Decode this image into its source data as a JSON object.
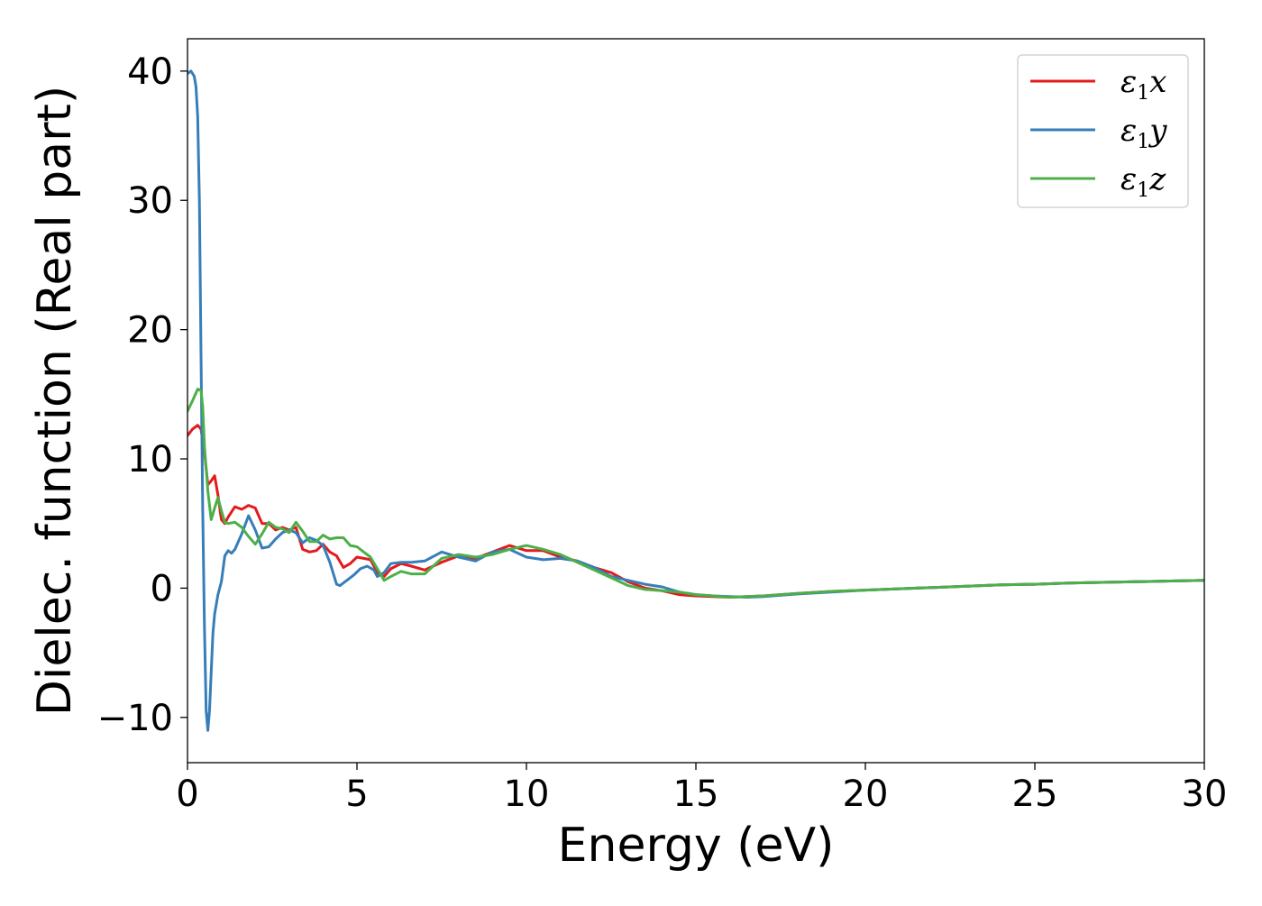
{
  "chart_data": {
    "type": "line",
    "title": "",
    "xlabel": "Energy (eV)",
    "ylabel": "Dielec. function (Real part)",
    "xlim": [
      0,
      30
    ],
    "ylim": [
      -13.5,
      42.5
    ],
    "xticks": [
      0,
      5,
      10,
      15,
      20,
      25,
      30
    ],
    "xtick_labels": [
      "0",
      "5",
      "10",
      "15",
      "20",
      "25",
      "30"
    ],
    "yticks": [
      -10,
      0,
      10,
      20,
      30,
      40
    ],
    "ytick_labels": [
      "−10",
      "0",
      "10",
      "20",
      "30",
      "40"
    ],
    "grid": false,
    "legend_position": "top-right",
    "series": [
      {
        "name": "ε₁x",
        "symbol": "ε",
        "sub": "1",
        "axis": "x",
        "color": "#e41a1c",
        "x": [
          0,
          0.15,
          0.3,
          0.4,
          0.5,
          0.6,
          0.7,
          0.8,
          0.9,
          1.0,
          1.1,
          1.2,
          1.4,
          1.6,
          1.8,
          2.0,
          2.2,
          2.4,
          2.6,
          2.8,
          3.0,
          3.2,
          3.4,
          3.6,
          3.8,
          4.0,
          4.2,
          4.4,
          4.6,
          4.8,
          5.0,
          5.2,
          5.4,
          5.6,
          5.8,
          6.0,
          6.3,
          6.6,
          7.0,
          7.5,
          8.0,
          8.5,
          9.0,
          9.5,
          10.0,
          10.5,
          11.0,
          11.5,
          12.0,
          12.5,
          13.0,
          13.5,
          14.0,
          14.5,
          15.0,
          15.5,
          16.0,
          16.5,
          17.0,
          18.0,
          19.0,
          20.0,
          21.0,
          22.0,
          23.0,
          24.0,
          25.0,
          26.0,
          27.0,
          28.0,
          29.0,
          30.0
        ],
        "values": [
          11.8,
          12.3,
          12.6,
          12.3,
          10.5,
          8.0,
          8.3,
          8.7,
          7.2,
          5.3,
          5.0,
          5.5,
          6.3,
          6.1,
          6.4,
          6.2,
          5.0,
          5.0,
          4.5,
          4.7,
          4.5,
          4.7,
          3.0,
          2.8,
          2.9,
          3.4,
          2.8,
          2.5,
          1.6,
          1.9,
          2.4,
          2.3,
          2.2,
          1.2,
          0.9,
          1.5,
          1.9,
          1.7,
          1.4,
          2.0,
          2.5,
          2.3,
          2.8,
          3.3,
          2.9,
          2.9,
          2.4,
          2.1,
          1.6,
          1.2,
          0.5,
          0.0,
          -0.2,
          -0.5,
          -0.6,
          -0.65,
          -0.7,
          -0.65,
          -0.6,
          -0.4,
          -0.25,
          -0.15,
          -0.05,
          0.05,
          0.15,
          0.25,
          0.3,
          0.4,
          0.45,
          0.5,
          0.55,
          0.6
        ]
      },
      {
        "name": "ε₁y",
        "symbol": "ε",
        "sub": "1",
        "axis": "y",
        "color": "#377eb8",
        "x": [
          0,
          0.1,
          0.2,
          0.25,
          0.3,
          0.35,
          0.4,
          0.45,
          0.5,
          0.55,
          0.6,
          0.65,
          0.7,
          0.75,
          0.8,
          0.9,
          1.0,
          1.1,
          1.2,
          1.3,
          1.4,
          1.6,
          1.8,
          2.0,
          2.2,
          2.4,
          2.6,
          2.8,
          3.0,
          3.2,
          3.4,
          3.6,
          3.8,
          4.0,
          4.2,
          4.4,
          4.5,
          4.7,
          4.9,
          5.1,
          5.3,
          5.5,
          5.6,
          5.8,
          6.0,
          6.3,
          6.6,
          7.0,
          7.5,
          8.0,
          8.5,
          9.0,
          9.5,
          10.0,
          10.5,
          11.0,
          11.5,
          12.0,
          12.5,
          13.0,
          13.5,
          14.0,
          14.5,
          15.0,
          15.5,
          16.0,
          16.5,
          17.0,
          18.0,
          19.0,
          20.0,
          21.0,
          22.0,
          23.0,
          24.0,
          25.0,
          26.0,
          27.0,
          28.0,
          29.0,
          30.0
        ],
        "values": [
          39.8,
          40.0,
          39.6,
          38.8,
          36.5,
          30.0,
          18.0,
          6.0,
          -3.0,
          -9.5,
          -11.0,
          -9.5,
          -6.5,
          -3.5,
          -2.0,
          -0.5,
          0.5,
          2.5,
          2.9,
          2.7,
          3.0,
          4.2,
          5.6,
          4.5,
          3.1,
          3.2,
          3.8,
          4.3,
          4.5,
          4.3,
          3.5,
          3.9,
          3.7,
          3.3,
          2.0,
          0.3,
          0.2,
          0.6,
          1.0,
          1.5,
          1.7,
          1.4,
          0.9,
          1.2,
          1.9,
          2.0,
          2.0,
          2.1,
          2.8,
          2.4,
          2.1,
          2.8,
          3.0,
          2.4,
          2.2,
          2.3,
          2.1,
          1.6,
          0.9,
          0.6,
          0.3,
          0.1,
          -0.3,
          -0.5,
          -0.6,
          -0.65,
          -0.7,
          -0.65,
          -0.45,
          -0.3,
          -0.15,
          -0.05,
          0.05,
          0.15,
          0.25,
          0.3,
          0.4,
          0.45,
          0.5,
          0.55,
          0.6
        ]
      },
      {
        "name": "ε₁z",
        "symbol": "ε",
        "sub": "1",
        "axis": "z",
        "color": "#4daf4a",
        "x": [
          0,
          0.15,
          0.3,
          0.4,
          0.45,
          0.5,
          0.6,
          0.7,
          0.8,
          0.9,
          1.0,
          1.1,
          1.2,
          1.4,
          1.6,
          1.8,
          2.0,
          2.2,
          2.4,
          2.6,
          2.8,
          3.0,
          3.2,
          3.4,
          3.6,
          3.8,
          4.0,
          4.2,
          4.4,
          4.6,
          4.8,
          5.0,
          5.2,
          5.4,
          5.6,
          5.8,
          6.0,
          6.3,
          6.6,
          7.0,
          7.5,
          8.0,
          8.5,
          9.0,
          9.5,
          10.0,
          10.5,
          11.0,
          11.5,
          12.0,
          12.5,
          13.0,
          13.5,
          14.0,
          14.5,
          15.0,
          15.5,
          16.0,
          16.5,
          17.0,
          18.0,
          19.0,
          20.0,
          21.0,
          22.0,
          23.0,
          24.0,
          25.0,
          26.0,
          27.0,
          28.0,
          29.0,
          30.0
        ],
        "values": [
          13.7,
          14.5,
          15.4,
          15.3,
          14.0,
          11.0,
          7.5,
          5.3,
          6.2,
          7.0,
          6.0,
          5.1,
          5.0,
          5.1,
          4.7,
          4.0,
          3.4,
          4.2,
          5.1,
          4.7,
          4.6,
          4.3,
          5.1,
          4.4,
          3.6,
          3.6,
          4.1,
          3.8,
          3.9,
          3.9,
          3.3,
          3.2,
          2.8,
          2.4,
          1.5,
          0.6,
          0.9,
          1.3,
          1.1,
          1.1,
          2.3,
          2.6,
          2.4,
          2.6,
          3.0,
          3.3,
          3.0,
          2.6,
          2.0,
          1.4,
          0.8,
          0.2,
          -0.1,
          -0.2,
          -0.3,
          -0.5,
          -0.6,
          -0.7,
          -0.65,
          -0.6,
          -0.4,
          -0.25,
          -0.15,
          -0.05,
          0.05,
          0.15,
          0.25,
          0.3,
          0.4,
          0.45,
          0.5,
          0.55,
          0.6
        ]
      }
    ]
  }
}
